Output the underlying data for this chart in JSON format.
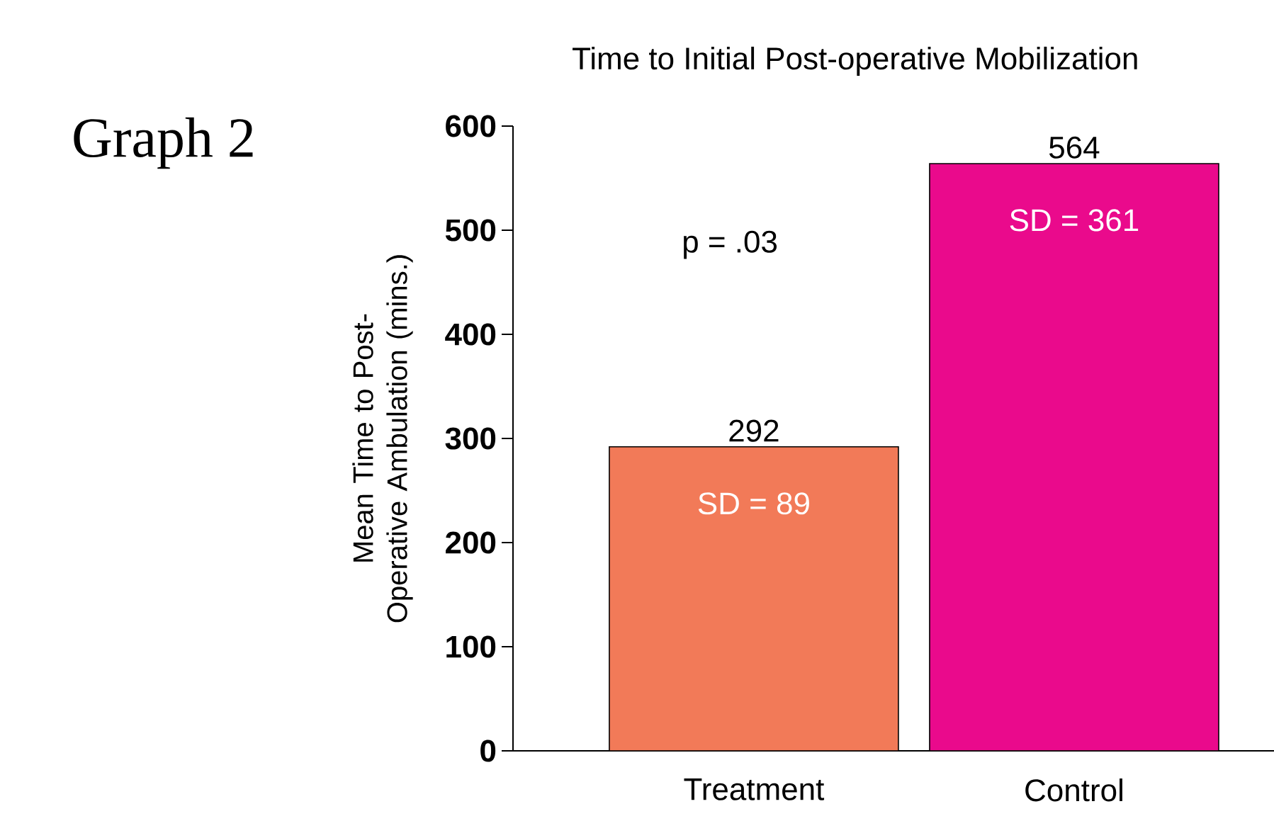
{
  "chart_data": {
    "type": "bar",
    "title": "Time to Initial Post-operative Mobilization",
    "ylabel": "Mean Time to Post-Operative Ambulation (mins.)",
    "categories": [
      "Treatment",
      "Control"
    ],
    "values": [
      292,
      564
    ],
    "colors": [
      "#f27a58",
      "#ea0a8c"
    ],
    "ylim": [
      0,
      600
    ],
    "yticks": [
      0,
      100,
      200,
      300,
      400,
      500,
      600
    ],
    "data_labels": true,
    "grid": false,
    "annotations": [
      "Graph 2",
      "p = .03",
      "SD = 89",
      "SD = 361"
    ]
  }
}
